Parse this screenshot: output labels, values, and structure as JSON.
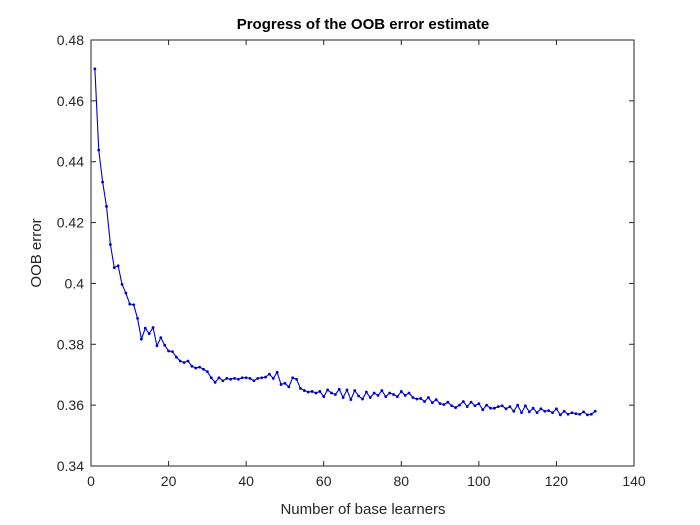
{
  "chart_data": {
    "type": "line",
    "title": "Progress of the OOB error estimate",
    "xlabel": "Number of base learners",
    "ylabel": "OOB error",
    "xlim": [
      0,
      140
    ],
    "ylim": [
      0.34,
      0.48
    ],
    "xticks": [
      "0",
      "20",
      "40",
      "60",
      "80",
      "100",
      "120",
      "140"
    ],
    "yticks": [
      "0.34",
      "0.36",
      "0.38",
      "0.4",
      "0.42",
      "0.44",
      "0.46",
      "0.48"
    ],
    "grid": false,
    "legend": "none",
    "series_color": "#0000cc",
    "marker": "dot",
    "series": [
      {
        "x": [
          1,
          2,
          3,
          4,
          5,
          6,
          7,
          8,
          9,
          10,
          11,
          12,
          13,
          14,
          15,
          16,
          17,
          18,
          19,
          20,
          21,
          22,
          23,
          24,
          25,
          26,
          27,
          28,
          29,
          30,
          31,
          32,
          33,
          34,
          35,
          36,
          37,
          38,
          39,
          40,
          41,
          42,
          43,
          44,
          45,
          46,
          47,
          48,
          49,
          50,
          51,
          52,
          53,
          54,
          55,
          56,
          57,
          58,
          59,
          60,
          61,
          62,
          63,
          64,
          65,
          66,
          67,
          68,
          69,
          70,
          71,
          72,
          73,
          74,
          75,
          76,
          77,
          78,
          79,
          80,
          81,
          82,
          83,
          84,
          85,
          86,
          87,
          88,
          89,
          90,
          91,
          92,
          93,
          94,
          95,
          96,
          97,
          98,
          99,
          100,
          101,
          102,
          103,
          104,
          105,
          106,
          107,
          108,
          109,
          110,
          111,
          112,
          113,
          114,
          115,
          116,
          117,
          118,
          119,
          120,
          121,
          122,
          123,
          124,
          125,
          126,
          127,
          128,
          129,
          130
        ],
        "y": [
          0.4705,
          0.4438,
          0.4333,
          0.4253,
          0.4128,
          0.4052,
          0.4058,
          0.3997,
          0.3968,
          0.3932,
          0.393,
          0.3885,
          0.3817,
          0.3853,
          0.3835,
          0.3855,
          0.3795,
          0.3822,
          0.3797,
          0.3778,
          0.3776,
          0.3758,
          0.3745,
          0.374,
          0.3745,
          0.3728,
          0.3722,
          0.3725,
          0.3718,
          0.371,
          0.369,
          0.3675,
          0.369,
          0.368,
          0.3688,
          0.3685,
          0.3688,
          0.3685,
          0.369,
          0.369,
          0.3688,
          0.368,
          0.3688,
          0.369,
          0.3692,
          0.3702,
          0.3688,
          0.3708,
          0.3668,
          0.3672,
          0.366,
          0.369,
          0.3685,
          0.3655,
          0.3648,
          0.3643,
          0.3645,
          0.364,
          0.3645,
          0.3628,
          0.365,
          0.364,
          0.3635,
          0.3652,
          0.3625,
          0.365,
          0.3618,
          0.3648,
          0.363,
          0.362,
          0.3643,
          0.3625,
          0.364,
          0.3632,
          0.3648,
          0.3628,
          0.364,
          0.3635,
          0.3628,
          0.3645,
          0.3632,
          0.364,
          0.3625,
          0.362,
          0.3622,
          0.3612,
          0.3625,
          0.3608,
          0.3618,
          0.3605,
          0.3602,
          0.361,
          0.3598,
          0.3592,
          0.36,
          0.3612,
          0.3595,
          0.361,
          0.3598,
          0.3605,
          0.3585,
          0.36,
          0.359,
          0.359,
          0.3595,
          0.3598,
          0.3588,
          0.3595,
          0.358,
          0.36,
          0.3575,
          0.3598,
          0.3578,
          0.359,
          0.3575,
          0.3588,
          0.358,
          0.3582,
          0.3575,
          0.3588,
          0.3568,
          0.358,
          0.357,
          0.3575,
          0.3572,
          0.357,
          0.3578,
          0.3568,
          0.357,
          0.358
        ]
      }
    ]
  }
}
